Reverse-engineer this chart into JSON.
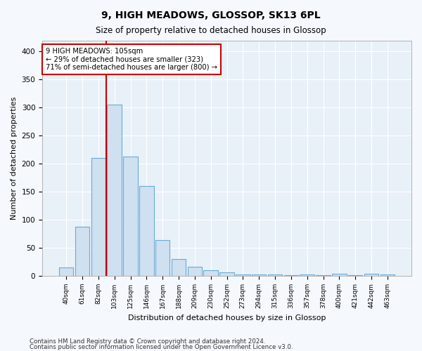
{
  "title": "9, HIGH MEADOWS, GLOSSOP, SK13 6PL",
  "subtitle": "Size of property relative to detached houses in Glossop",
  "xlabel": "Distribution of detached houses by size in Glossop",
  "ylabel": "Number of detached properties",
  "bar_color": "#cfe0f0",
  "bar_edge_color": "#6aaad4",
  "background_color": "#e8f0f8",
  "fig_background_color": "#f5f8fd",
  "grid_color": "#ffffff",
  "categories": [
    "40sqm",
    "61sqm",
    "82sqm",
    "103sqm",
    "125sqm",
    "146sqm",
    "167sqm",
    "188sqm",
    "209sqm",
    "230sqm",
    "252sqm",
    "273sqm",
    "294sqm",
    "315sqm",
    "336sqm",
    "357sqm",
    "378sqm",
    "400sqm",
    "421sqm",
    "442sqm",
    "463sqm"
  ],
  "values": [
    15,
    88,
    210,
    305,
    213,
    160,
    64,
    30,
    16,
    10,
    6,
    3,
    2,
    3,
    1,
    2,
    1,
    4,
    1,
    4,
    3
  ],
  "vline_x_index": 3,
  "vline_color": "#cc0000",
  "annotation_line1": "9 HIGH MEADOWS: 105sqm",
  "annotation_line2": "← 29% of detached houses are smaller (323)",
  "annotation_line3": "71% of semi-detached houses are larger (800) →",
  "annotation_box_color": "#ffffff",
  "annotation_box_edge": "#cc0000",
  "ylim": [
    0,
    420
  ],
  "yticks": [
    0,
    50,
    100,
    150,
    200,
    250,
    300,
    350,
    400
  ],
  "footer_line1": "Contains HM Land Registry data © Crown copyright and database right 2024.",
  "footer_line2": "Contains public sector information licensed under the Open Government Licence v3.0."
}
